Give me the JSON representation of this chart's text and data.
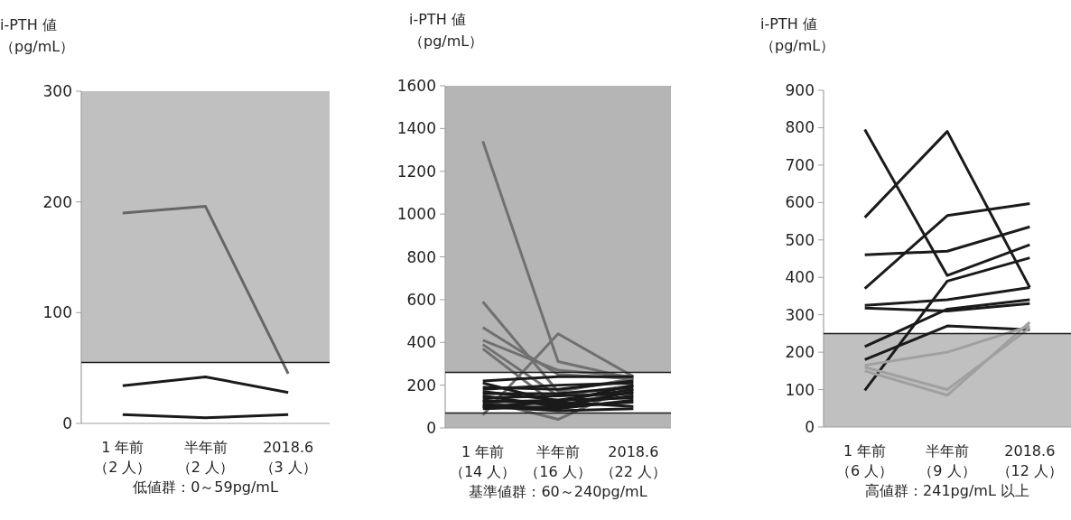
{
  "chart_data": [
    {
      "type": "line",
      "ylabel": "i-PTH 値（pg/mL）",
      "xlabel": "低値群：0～59pg/mL",
      "categories": [
        "1 年前（2 人）",
        "半年前（2 人）",
        "2018.6（3 人）"
      ],
      "ylim": [
        0,
        300
      ],
      "yticks": [
        0,
        100,
        200,
        300
      ],
      "grid": false,
      "bands": [
        {
          "axis": "y",
          "from": 55,
          "to": 300,
          "color": "#c0c0c1"
        }
      ],
      "ref_lines": [
        {
          "axis": "y",
          "value": 55,
          "color": "#1a1a1a"
        }
      ],
      "series": [
        {
          "color": "#666666",
          "values": [
            190,
            196,
            45
          ]
        },
        {
          "color": "#1a1a1a",
          "values": [
            34,
            42,
            28
          ]
        },
        {
          "color": "#1a1a1a",
          "values": [
            8,
            5,
            8
          ]
        }
      ]
    },
    {
      "type": "line",
      "ylabel": "i-PTH 値（pg/mL）",
      "xlabel": "基準値群：60～240pg/mL",
      "categories": [
        "1 年前（14 人）",
        "半年前（16 人）",
        "2018.6（22 人）"
      ],
      "ylim": [
        0,
        1600
      ],
      "yticks": [
        0,
        200,
        400,
        600,
        800,
        1000,
        1200,
        1400,
        1600
      ],
      "grid": false,
      "bands": [
        {
          "axis": "y",
          "from": 260,
          "to": 1600,
          "color": "#b5b5b6"
        },
        {
          "axis": "y",
          "from": 0,
          "to": 70,
          "color": "#b5b5b6"
        }
      ],
      "ref_lines": [
        {
          "axis": "y",
          "value": 260,
          "color": "#1a1a1a"
        },
        {
          "axis": "y",
          "value": 70,
          "color": "#1a1a1a"
        }
      ],
      "series": [
        {
          "color": "#707070",
          "values": [
            1340,
            310,
            230
          ]
        },
        {
          "color": "#707070",
          "values": [
            590,
            170,
            230
          ]
        },
        {
          "color": "#707070",
          "values": [
            470,
            250,
            230
          ]
        },
        {
          "color": "#707070",
          "values": [
            410,
            270,
            240
          ]
        },
        {
          "color": "#707070",
          "values": [
            390,
            150,
            200
          ]
        },
        {
          "color": "#707070",
          "values": [
            370,
            100,
            180
          ]
        },
        {
          "color": "#707070",
          "values": [
            60,
            440,
            240
          ]
        },
        {
          "color": "#707070",
          "values": [
            130,
            40,
            200
          ]
        },
        {
          "color": "#1a1a1a",
          "values": [
            220,
            240,
            240
          ]
        },
        {
          "color": "#1a1a1a",
          "values": [
            210,
            120,
            200
          ]
        },
        {
          "color": "#1a1a1a",
          "values": [
            190,
            180,
            220
          ]
        },
        {
          "color": "#1a1a1a",
          "values": [
            180,
            200,
            210
          ]
        },
        {
          "color": "#1a1a1a",
          "values": [
            170,
            130,
            180
          ]
        },
        {
          "color": "#1a1a1a",
          "values": [
            160,
            160,
            190
          ]
        },
        {
          "color": "#1a1a1a",
          "values": [
            150,
            100,
            170
          ]
        },
        {
          "color": "#1a1a1a",
          "values": [
            140,
            150,
            160
          ]
        },
        {
          "color": "#1a1a1a",
          "values": [
            130,
            110,
            150
          ]
        },
        {
          "color": "#1a1a1a",
          "values": [
            120,
            130,
            140
          ]
        },
        {
          "color": "#1a1a1a",
          "values": [
            110,
            90,
            130
          ]
        },
        {
          "color": "#1a1a1a",
          "values": [
            100,
            120,
            100
          ]
        },
        {
          "color": "#1a1a1a",
          "values": [
            100,
            80,
            90
          ]
        },
        {
          "color": "#1a1a1a",
          "values": [
            90,
            100,
            120
          ]
        }
      ]
    },
    {
      "type": "line",
      "ylabel": "i-PTH 値（pg/mL）",
      "xlabel": "高値群：241pg/mL 以上",
      "categories": [
        "1 年前（6 人）",
        "半年前（9 人）",
        "2018.6（12 人）"
      ],
      "ylim": [
        0,
        900
      ],
      "yticks": [
        0,
        100,
        200,
        300,
        400,
        500,
        600,
        700,
        800,
        900
      ],
      "grid": false,
      "bands": [
        {
          "axis": "y",
          "from": 0,
          "to": 250,
          "color": "#c0c0c1"
        }
      ],
      "ref_lines": [
        {
          "axis": "y",
          "value": 250,
          "color": "#1a1a1a"
        }
      ],
      "series": [
        {
          "color": "#1a1a1a",
          "values": [
            795,
            405,
            487
          ]
        },
        {
          "color": "#1a1a1a",
          "values": [
            560,
            790,
            373
          ]
        },
        {
          "color": "#1a1a1a",
          "values": [
            370,
            565,
            597
          ]
        },
        {
          "color": "#1a1a1a",
          "values": [
            460,
            470,
            535
          ]
        },
        {
          "color": "#1a1a1a",
          "values": [
            98,
            390,
            452
          ]
        },
        {
          "color": "#1a1a1a",
          "values": [
            325,
            340,
            373
          ]
        },
        {
          "color": "#1a1a1a",
          "values": [
            318,
            310,
            330
          ]
        },
        {
          "color": "#1a1a1a",
          "values": [
            215,
            315,
            340
          ]
        },
        {
          "color": "#1a1a1a",
          "values": [
            180,
            270,
            260
          ]
        },
        {
          "color": "#a0a0a0",
          "values": [
            165,
            200,
            270
          ]
        },
        {
          "color": "#a0a0a0",
          "values": [
            160,
            100,
            265
          ]
        },
        {
          "color": "#a0a0a0",
          "values": [
            150,
            85,
            280
          ]
        }
      ]
    }
  ]
}
